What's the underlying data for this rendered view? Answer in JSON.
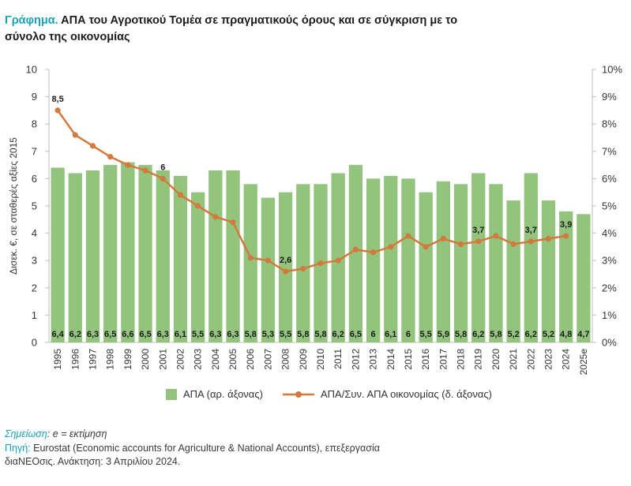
{
  "title": {
    "lead": "Γράφημα.",
    "text": "ΑΠΑ του Αγροτικού Τομέα σε πραγματικούς όρους και σε σύγκριση με το σύνολο της οικονομίας"
  },
  "colors": {
    "bar": "#93c47d",
    "line": "#d4793c",
    "accent": "#17a2b8"
  },
  "chart_data": {
    "type": "bar",
    "categories": [
      "1995",
      "1996",
      "1997",
      "1998",
      "1999",
      "2000",
      "2001",
      "2002",
      "2003",
      "2004",
      "2005",
      "2006",
      "2007",
      "2008",
      "2009",
      "2010",
      "2011",
      "2012",
      "2013",
      "2014",
      "2015",
      "2016",
      "2017",
      "2018",
      "2019",
      "2020",
      "2021",
      "2022",
      "2023",
      "2024",
      "2025e"
    ],
    "series": [
      {
        "name": "ΑΠΑ (αρ. άξονας)",
        "kind": "bar",
        "axis": "left",
        "values": [
          6.4,
          6.2,
          6.3,
          6.5,
          6.6,
          6.5,
          6.3,
          6.1,
          5.5,
          6.3,
          6.3,
          5.8,
          5.3,
          5.5,
          5.8,
          5.8,
          6.2,
          6.5,
          6,
          6.1,
          6,
          5.5,
          5.9,
          5.8,
          6.2,
          5.8,
          5.2,
          6.2,
          5.2,
          4.8,
          4.7
        ],
        "labels": [
          "6,4",
          "6,2",
          "6,3",
          "6,5",
          "6,6",
          "6,5",
          "6,3",
          "6,1",
          "5,5",
          "6,3",
          "6,3",
          "5,8",
          "5,3",
          "5,5",
          "5,8",
          "5,8",
          "6,2",
          "6,5",
          "6",
          "6,1",
          "6",
          "5,5",
          "5,9",
          "5,8",
          "6,2",
          "5,8",
          "5,2",
          "6,2",
          "5,2",
          "4,8",
          "4,7"
        ]
      },
      {
        "name": "ΑΠΑ/Συν. ΑΠΑ οικονομίας (δ. άξονας)",
        "kind": "line",
        "axis": "right",
        "values": [
          8.5,
          7.6,
          7.2,
          6.8,
          6.5,
          6.3,
          6,
          5.4,
          5,
          4.6,
          4.4,
          3.1,
          3,
          2.6,
          2.7,
          2.9,
          3,
          3.4,
          3.3,
          3.5,
          3.9,
          3.5,
          3.8,
          3.6,
          3.7,
          3.9,
          3.6,
          3.7,
          3.8,
          3.9,
          null
        ],
        "annotations": [
          {
            "index": 0,
            "text": "8,5"
          },
          {
            "index": 6,
            "text": "6"
          },
          {
            "index": 13,
            "text": "2,6"
          },
          {
            "index": 24,
            "text": "3,7"
          },
          {
            "index": 27,
            "text": "3,7"
          },
          {
            "index": 29,
            "text": "3,9"
          }
        ]
      }
    ],
    "ylabel": "Δισεκ. €, σε σταθερές αξίες 2015",
    "ylim": [
      0,
      10
    ],
    "yticks": [
      "0",
      "1",
      "2",
      "3",
      "4",
      "5",
      "6",
      "7",
      "8",
      "9",
      "10"
    ],
    "y2lim": [
      0,
      10
    ],
    "y2ticks": [
      "0%",
      "1%",
      "2%",
      "3%",
      "4%",
      "5%",
      "6%",
      "7%",
      "8%",
      "9%",
      "10%"
    ],
    "grid": false,
    "legend_position": "bottom"
  },
  "notes": {
    "note_label": "Σημείωση",
    "note_text": ": e = εκτίμηση",
    "source_label": "Πηγή:",
    "source_text": " Eurostat (Economic accounts for Agriculture & National Accounts), επεξεργασία",
    "source_line2": "διαNEOσις. Ανάκτηση: 3 Απριλίου 2024."
  }
}
